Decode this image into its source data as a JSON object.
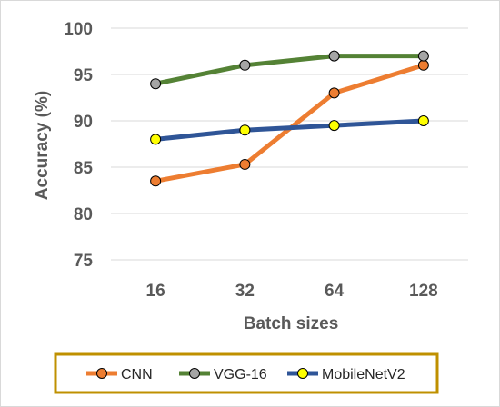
{
  "chart_data": {
    "type": "line",
    "title": "",
    "xlabel": "Batch sizes",
    "ylabel": "Accuracy (%)",
    "categories": [
      "16",
      "32",
      "64",
      "128"
    ],
    "ylim": [
      75,
      100
    ],
    "yticks": [
      75,
      80,
      85,
      90,
      95,
      100
    ],
    "grid": "horizontal",
    "legend_position": "bottom",
    "series": [
      {
        "name": "CNN",
        "values": [
          83.5,
          85.3,
          93,
          96
        ],
        "color": "#ED7D31",
        "marker_color": "#ED7D31"
      },
      {
        "name": "VGG-16",
        "values": [
          94,
          96,
          97,
          97
        ],
        "color": "#548235",
        "marker_color": "#A5A5A5"
      },
      {
        "name": "MobileNetV2",
        "values": [
          88,
          89,
          89.5,
          90
        ],
        "color": "#2F5597",
        "marker_color": "#FFFF00"
      }
    ],
    "frame_color": "#BF9000"
  }
}
